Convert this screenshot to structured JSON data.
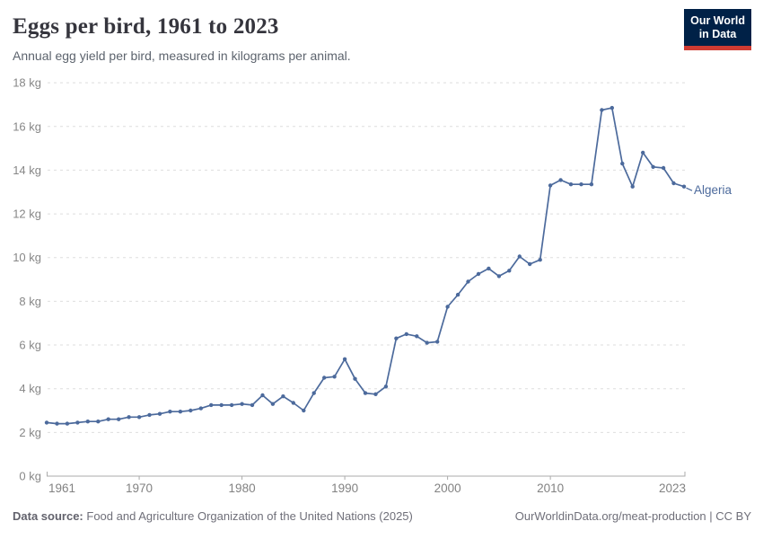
{
  "header": {
    "title": "Eggs per bird, 1961 to 2023",
    "subtitle": "Annual egg yield per bird, measured in kilograms per animal.",
    "logo": {
      "line1": "Our World",
      "line2": "in Data"
    }
  },
  "chart_data": {
    "type": "line",
    "title": "Eggs per bird, 1961 to 2023",
    "unit": "kg",
    "ylim": [
      0,
      18
    ],
    "ytick_step": 2,
    "xticks": [
      1961,
      1970,
      1980,
      1990,
      2000,
      2010,
      2023
    ],
    "grid": "dashed-horizontal",
    "legend_position": "end-of-line-label",
    "x": [
      1961,
      1962,
      1963,
      1964,
      1965,
      1966,
      1967,
      1968,
      1969,
      1970,
      1971,
      1972,
      1973,
      1974,
      1975,
      1976,
      1977,
      1978,
      1979,
      1980,
      1981,
      1982,
      1983,
      1984,
      1985,
      1986,
      1987,
      1988,
      1989,
      1990,
      1991,
      1992,
      1993,
      1994,
      1995,
      1996,
      1997,
      1998,
      1999,
      2000,
      2001,
      2002,
      2003,
      2004,
      2005,
      2006,
      2007,
      2008,
      2009,
      2010,
      2011,
      2012,
      2013,
      2014,
      2015,
      2016,
      2017,
      2018,
      2019,
      2020,
      2021,
      2022,
      2023
    ],
    "series": [
      {
        "name": "Algeria",
        "color": "#4c6a9c",
        "values": [
          2.45,
          2.4,
          2.4,
          2.45,
          2.5,
          2.5,
          2.6,
          2.6,
          2.7,
          2.7,
          2.8,
          2.85,
          2.95,
          2.95,
          3.0,
          3.1,
          3.25,
          3.25,
          3.25,
          3.3,
          3.25,
          3.7,
          3.3,
          3.65,
          3.35,
          3.0,
          3.8,
          4.5,
          4.55,
          5.35,
          4.45,
          3.8,
          3.75,
          4.1,
          6.3,
          6.5,
          6.4,
          6.1,
          6.15,
          7.75,
          8.3,
          8.9,
          9.25,
          9.5,
          9.15,
          9.4,
          10.05,
          9.7,
          9.9,
          13.3,
          13.55,
          13.35,
          13.35,
          13.35,
          16.75,
          16.85,
          14.3,
          13.25,
          14.8,
          14.15,
          14.1,
          13.4,
          13.25
        ]
      }
    ]
  },
  "footer": {
    "source_label": "Data source:",
    "source_text": "Food and Agriculture Organization of the United Nations (2025)",
    "credit_text": "OurWorldinData.org/meat-production | CC BY"
  },
  "colors": {
    "accent_line": "#4c6a9c",
    "logo_bg": "#002147",
    "logo_accent": "#cf3b32",
    "grid": "#dedede",
    "axis": "#ababab",
    "tick_label": "#878787"
  }
}
